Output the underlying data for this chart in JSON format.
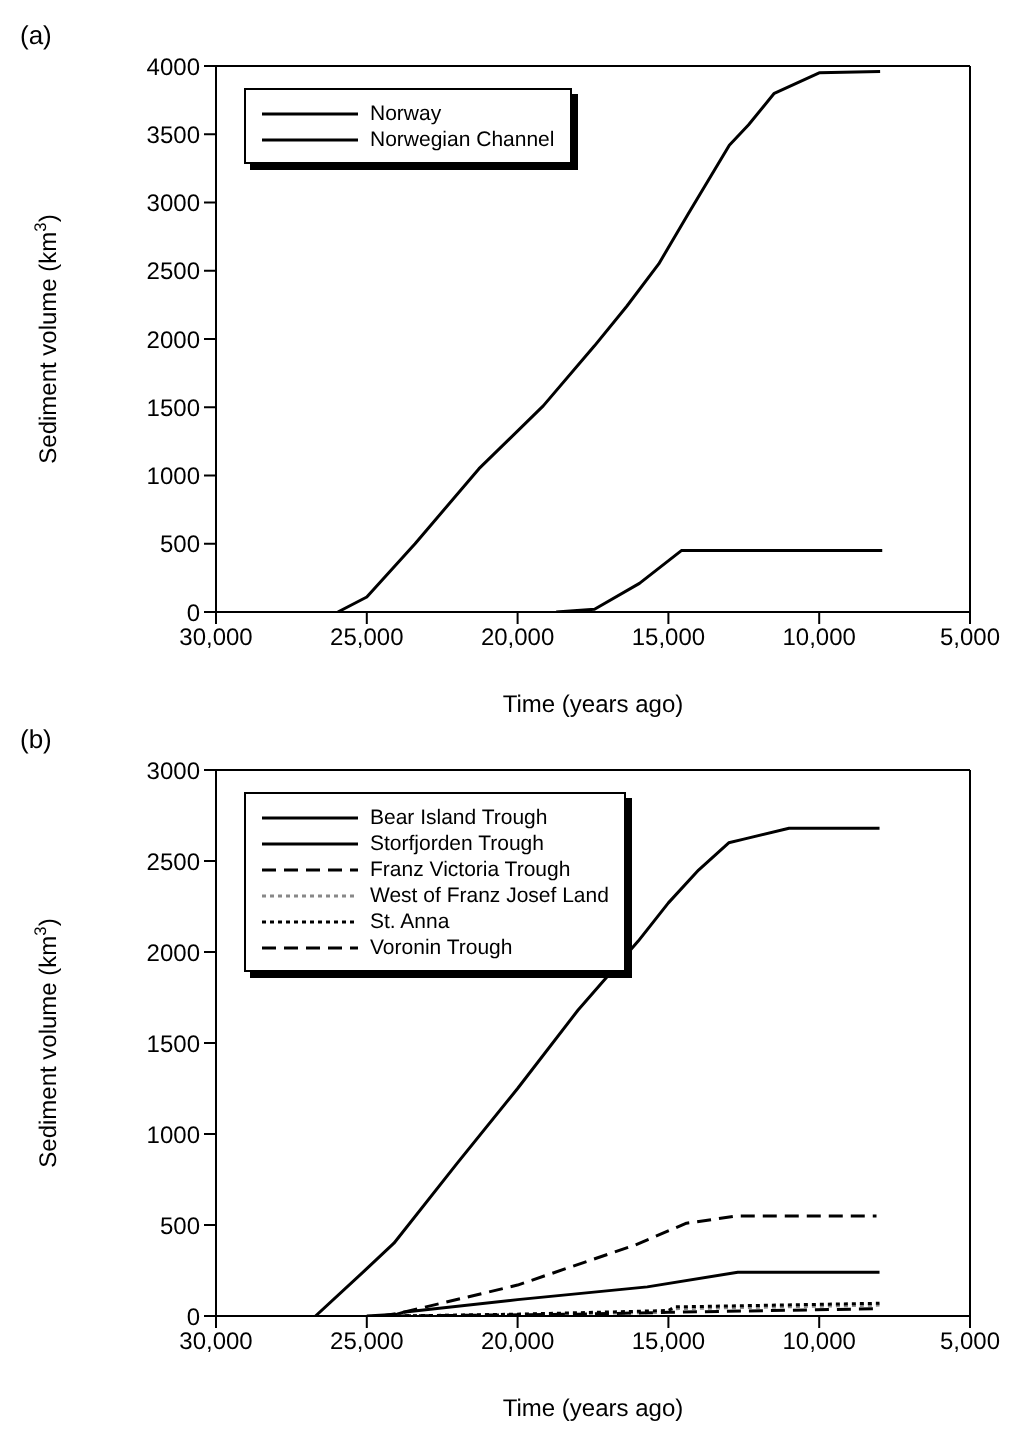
{
  "chart_data": [
    {
      "type": "line",
      "title": "(a)",
      "xlabel": "Time (years ago)",
      "ylabel": "Sediment volume (km$^{3}$)",
      "xlim": [
        30000,
        5000
      ],
      "xticks": [
        {
          "value": 30000,
          "label": "30,000"
        },
        {
          "value": 25000,
          "label": "25,000"
        },
        {
          "value": 20000,
          "label": "20,000"
        },
        {
          "value": 15000,
          "label": "15,000"
        },
        {
          "value": 10000,
          "label": "10,000"
        },
        {
          "value": 5000,
          "label": "5,000"
        }
      ],
      "ylim": [
        0,
        4000
      ],
      "yticks": [
        0,
        500,
        1000,
        1500,
        2000,
        2500,
        3000,
        3500,
        4000
      ],
      "grid": false,
      "legend": "top left",
      "marker": "none",
      "series": [
        {
          "name": "Norway",
          "color": "#000000",
          "line_style": "solid",
          "x": [
            25960,
            25000,
            23400,
            21280,
            19150,
            17450,
            16380,
            15320,
            14360,
            12980,
            12340,
            11490,
            10000,
            7980
          ],
          "values": [
            0,
            110,
            500,
            1050,
            1510,
            1950,
            2240,
            2550,
            2910,
            3420,
            3570,
            3800,
            3950,
            3960
          ]
        },
        {
          "name": "Norwegian Channel",
          "color": "#000000",
          "line_style": "solid",
          "x": [
            18720,
            17450,
            15960,
            14570,
            7910
          ],
          "values": [
            0,
            20,
            210,
            450,
            450
          ]
        }
      ]
    },
    {
      "type": "line",
      "title": "(b)",
      "xlabel": "Time (years ago)",
      "ylabel": "Sediment volume (km$^{3}$)",
      "xlim": [
        30000,
        5000
      ],
      "xticks": [
        {
          "value": 30000,
          "label": "30,000"
        },
        {
          "value": 25000,
          "label": "25,000"
        },
        {
          "value": 20000,
          "label": "20,000"
        },
        {
          "value": 15000,
          "label": "15,000"
        },
        {
          "value": 10000,
          "label": "10,000"
        },
        {
          "value": 5000,
          "label": "5,000"
        }
      ],
      "ylim": [
        0,
        3000
      ],
      "yticks": [
        0,
        500,
        1000,
        1500,
        2000,
        2500,
        3000
      ],
      "grid": false,
      "legend": "top left",
      "marker": "none",
      "series": [
        {
          "name": "Bear Island Trough",
          "color": "#000000",
          "line_style": "solid",
          "x": [
            26700,
            25000,
            24100,
            22000,
            20000,
            18000,
            16000,
            15000,
            14000,
            13000,
            12500,
            11000,
            8000
          ],
          "values": [
            0,
            260,
            400,
            840,
            1250,
            1680,
            2060,
            2270,
            2450,
            2600,
            2620,
            2680,
            2680
          ]
        },
        {
          "name": "Storfjorden Trough",
          "color": "#000000",
          "line_style": "solid",
          "x": [
            25000,
            24000,
            23800,
            20000,
            15700,
            12700,
            8000
          ],
          "values": [
            0,
            10,
            20,
            90,
            160,
            240,
            240
          ]
        },
        {
          "name": "Franz Victoria Trough",
          "color": "#000000",
          "line_style": "dashed",
          "x": [
            24500,
            23800,
            20000,
            16100,
            14400,
            12700,
            8100
          ],
          "values": [
            0,
            20,
            170,
            390,
            510,
            550,
            550
          ]
        },
        {
          "name": "West of Franz Josef Land",
          "color": "#888888",
          "line_style": "dotted",
          "x": [
            24000,
            15000,
            14800,
            8000
          ],
          "values": [
            0,
            20,
            40,
            60
          ]
        },
        {
          "name": "St. Anna",
          "color": "#000000",
          "line_style": "dotted",
          "x": [
            24000,
            20000,
            15000,
            14800,
            8000
          ],
          "values": [
            0,
            10,
            30,
            50,
            70
          ]
        },
        {
          "name": "Voronin Trough",
          "color": "#000000",
          "line_style": "dashed",
          "x": [
            24000,
            18000,
            15000,
            8000
          ],
          "values": [
            0,
            10,
            20,
            40
          ]
        }
      ]
    }
  ]
}
